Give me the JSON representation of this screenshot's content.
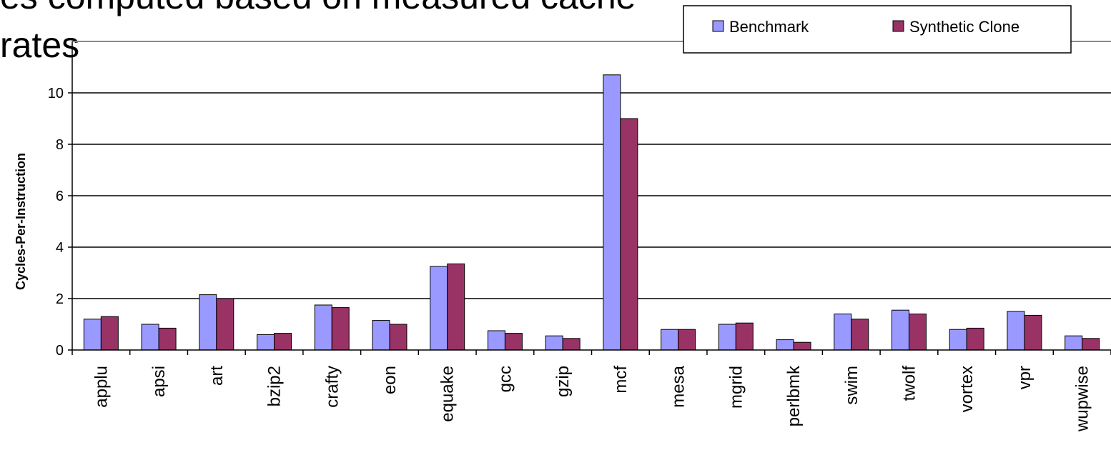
{
  "slide": {
    "title_line1": "es computed based on measured cache",
    "title_line2": "rates"
  },
  "colors": {
    "benchmark": "#9999ff",
    "synthetic_clone": "#993366",
    "axis": "#000000",
    "grid": "#000000"
  },
  "chart_data": {
    "type": "bar",
    "title": "",
    "xlabel": "",
    "ylabel": "Cycles-Per-Instruction",
    "ylim": [
      0,
      12
    ],
    "yticks": [
      0,
      2,
      4,
      6,
      8,
      10
    ],
    "grid": true,
    "legend_position": "top-right",
    "categories": [
      "applu",
      "apsi",
      "art",
      "bzip2",
      "crafty",
      "eon",
      "equake",
      "gcc",
      "gzip",
      "mcf",
      "mesa",
      "mgrid",
      "perlbmk",
      "swim",
      "twolf",
      "vortex",
      "vpr",
      "wupwise"
    ],
    "series": [
      {
        "name": "Benchmark",
        "values": [
          1.2,
          1.0,
          2.15,
          0.6,
          1.75,
          1.15,
          3.25,
          0.75,
          0.55,
          10.7,
          0.8,
          1.0,
          0.4,
          1.4,
          1.55,
          0.8,
          1.5,
          0.55
        ]
      },
      {
        "name": "Synthetic Clone",
        "values": [
          1.3,
          0.85,
          2.0,
          0.65,
          1.65,
          1.0,
          3.35,
          0.65,
          0.45,
          9.0,
          0.8,
          1.05,
          0.3,
          1.2,
          1.4,
          0.85,
          1.35,
          0.45
        ]
      }
    ]
  }
}
